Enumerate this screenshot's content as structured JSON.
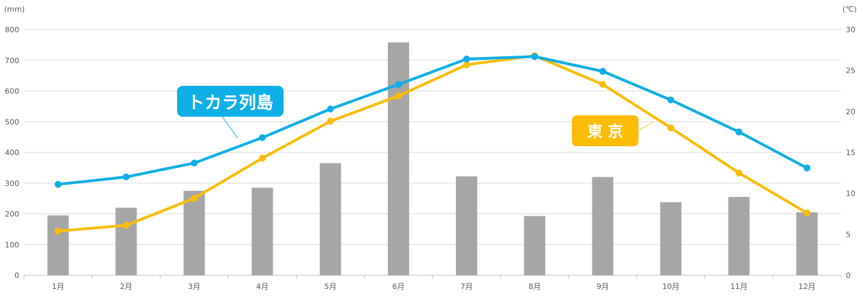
{
  "chart_data": {
    "type": "bar+line",
    "categories": [
      "1月",
      "2月",
      "3月",
      "4月",
      "5月",
      "6月",
      "7月",
      "8月",
      "9月",
      "10月",
      "11月",
      "12月"
    ],
    "y_left": {
      "unit_label": "(mm)",
      "min": 0,
      "max": 800,
      "step": 100,
      "ticks": [
        "0",
        "100",
        "200",
        "300",
        "400",
        "500",
        "600",
        "700",
        "800"
      ]
    },
    "y_right": {
      "unit_label": "(℃)",
      "min": 0,
      "max": 30,
      "step": 5,
      "ticks": [
        "0",
        "5",
        "10",
        "15",
        "20",
        "25",
        "30"
      ]
    },
    "grid": true,
    "bars": {
      "axis": "left",
      "color": "#a6a6a6",
      "values": [
        195,
        220,
        275,
        285,
        365,
        758,
        322,
        193,
        320,
        238,
        255,
        205
      ]
    },
    "series": [
      {
        "name": "トカラ列島",
        "axis": "right",
        "color": "#0eaee6",
        "values": [
          11.1,
          12.0,
          13.7,
          16.8,
          20.3,
          23.3,
          26.4,
          26.7,
          24.9,
          21.4,
          17.5,
          13.1
        ]
      },
      {
        "name": "東 京",
        "axis": "right",
        "color": "#fbbd08",
        "values": [
          5.4,
          6.1,
          9.4,
          14.3,
          18.8,
          21.9,
          25.7,
          26.8,
          23.3,
          18.0,
          12.5,
          7.6
        ]
      }
    ]
  }
}
